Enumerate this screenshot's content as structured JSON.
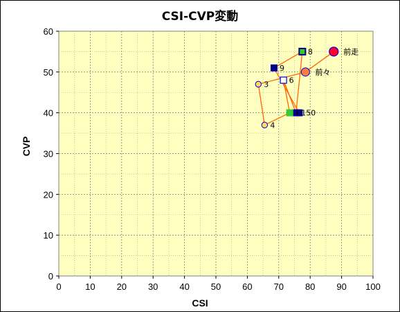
{
  "chart_data": {
    "type": "scatter",
    "title": "CSI-CVP変動",
    "xlabel": "CSI",
    "ylabel": "CVP",
    "xlim": [
      0,
      100
    ],
    "ylim": [
      0,
      60
    ],
    "x_ticks": [
      "0",
      "10",
      "20",
      "30",
      "40",
      "50",
      "60",
      "70",
      "80",
      "90",
      "100"
    ],
    "y_ticks": [
      "0",
      "10",
      "20",
      "30",
      "40",
      "50",
      "60"
    ],
    "grid": true,
    "colors": {
      "plot_bg": "#ffffc0",
      "line": "#ff6600",
      "edge": "#0000cc",
      "square_navy": "#000080",
      "square_green": "#33cc33",
      "circle_yellow": "#ffd966",
      "circle_orange": "#ff7f3f",
      "circle_red": "#ff0033"
    },
    "points": [
      {
        "label": "前走",
        "x": 87.5,
        "y": 55,
        "marker": "circle-red"
      },
      {
        "label": "前々",
        "x": 78.5,
        "y": 50,
        "marker": "circle-orange"
      },
      {
        "label": "3",
        "x": 63.5,
        "y": 47,
        "marker": "circle-yellow"
      },
      {
        "label": "4",
        "x": 65.5,
        "y": 37,
        "marker": "circle-yellow"
      },
      {
        "label": "",
        "x": 73.5,
        "y": 40,
        "marker": "square-green"
      },
      {
        "label": "6",
        "x": 71.5,
        "y": 48,
        "marker": "square-white"
      },
      {
        "label": "",
        "x": 75.5,
        "y": 40,
        "marker": "square-navy"
      },
      {
        "label": "8",
        "x": 77.5,
        "y": 55,
        "marker": "square-green-navy"
      },
      {
        "label": "9",
        "x": 68.5,
        "y": 51,
        "marker": "square-navy"
      },
      {
        "label": "",
        "x": 76.5,
        "y": 40,
        "marker": "square-navy"
      }
    ],
    "overlap_label": {
      "text": "0150",
      "x": 76.5,
      "y": 40
    }
  }
}
